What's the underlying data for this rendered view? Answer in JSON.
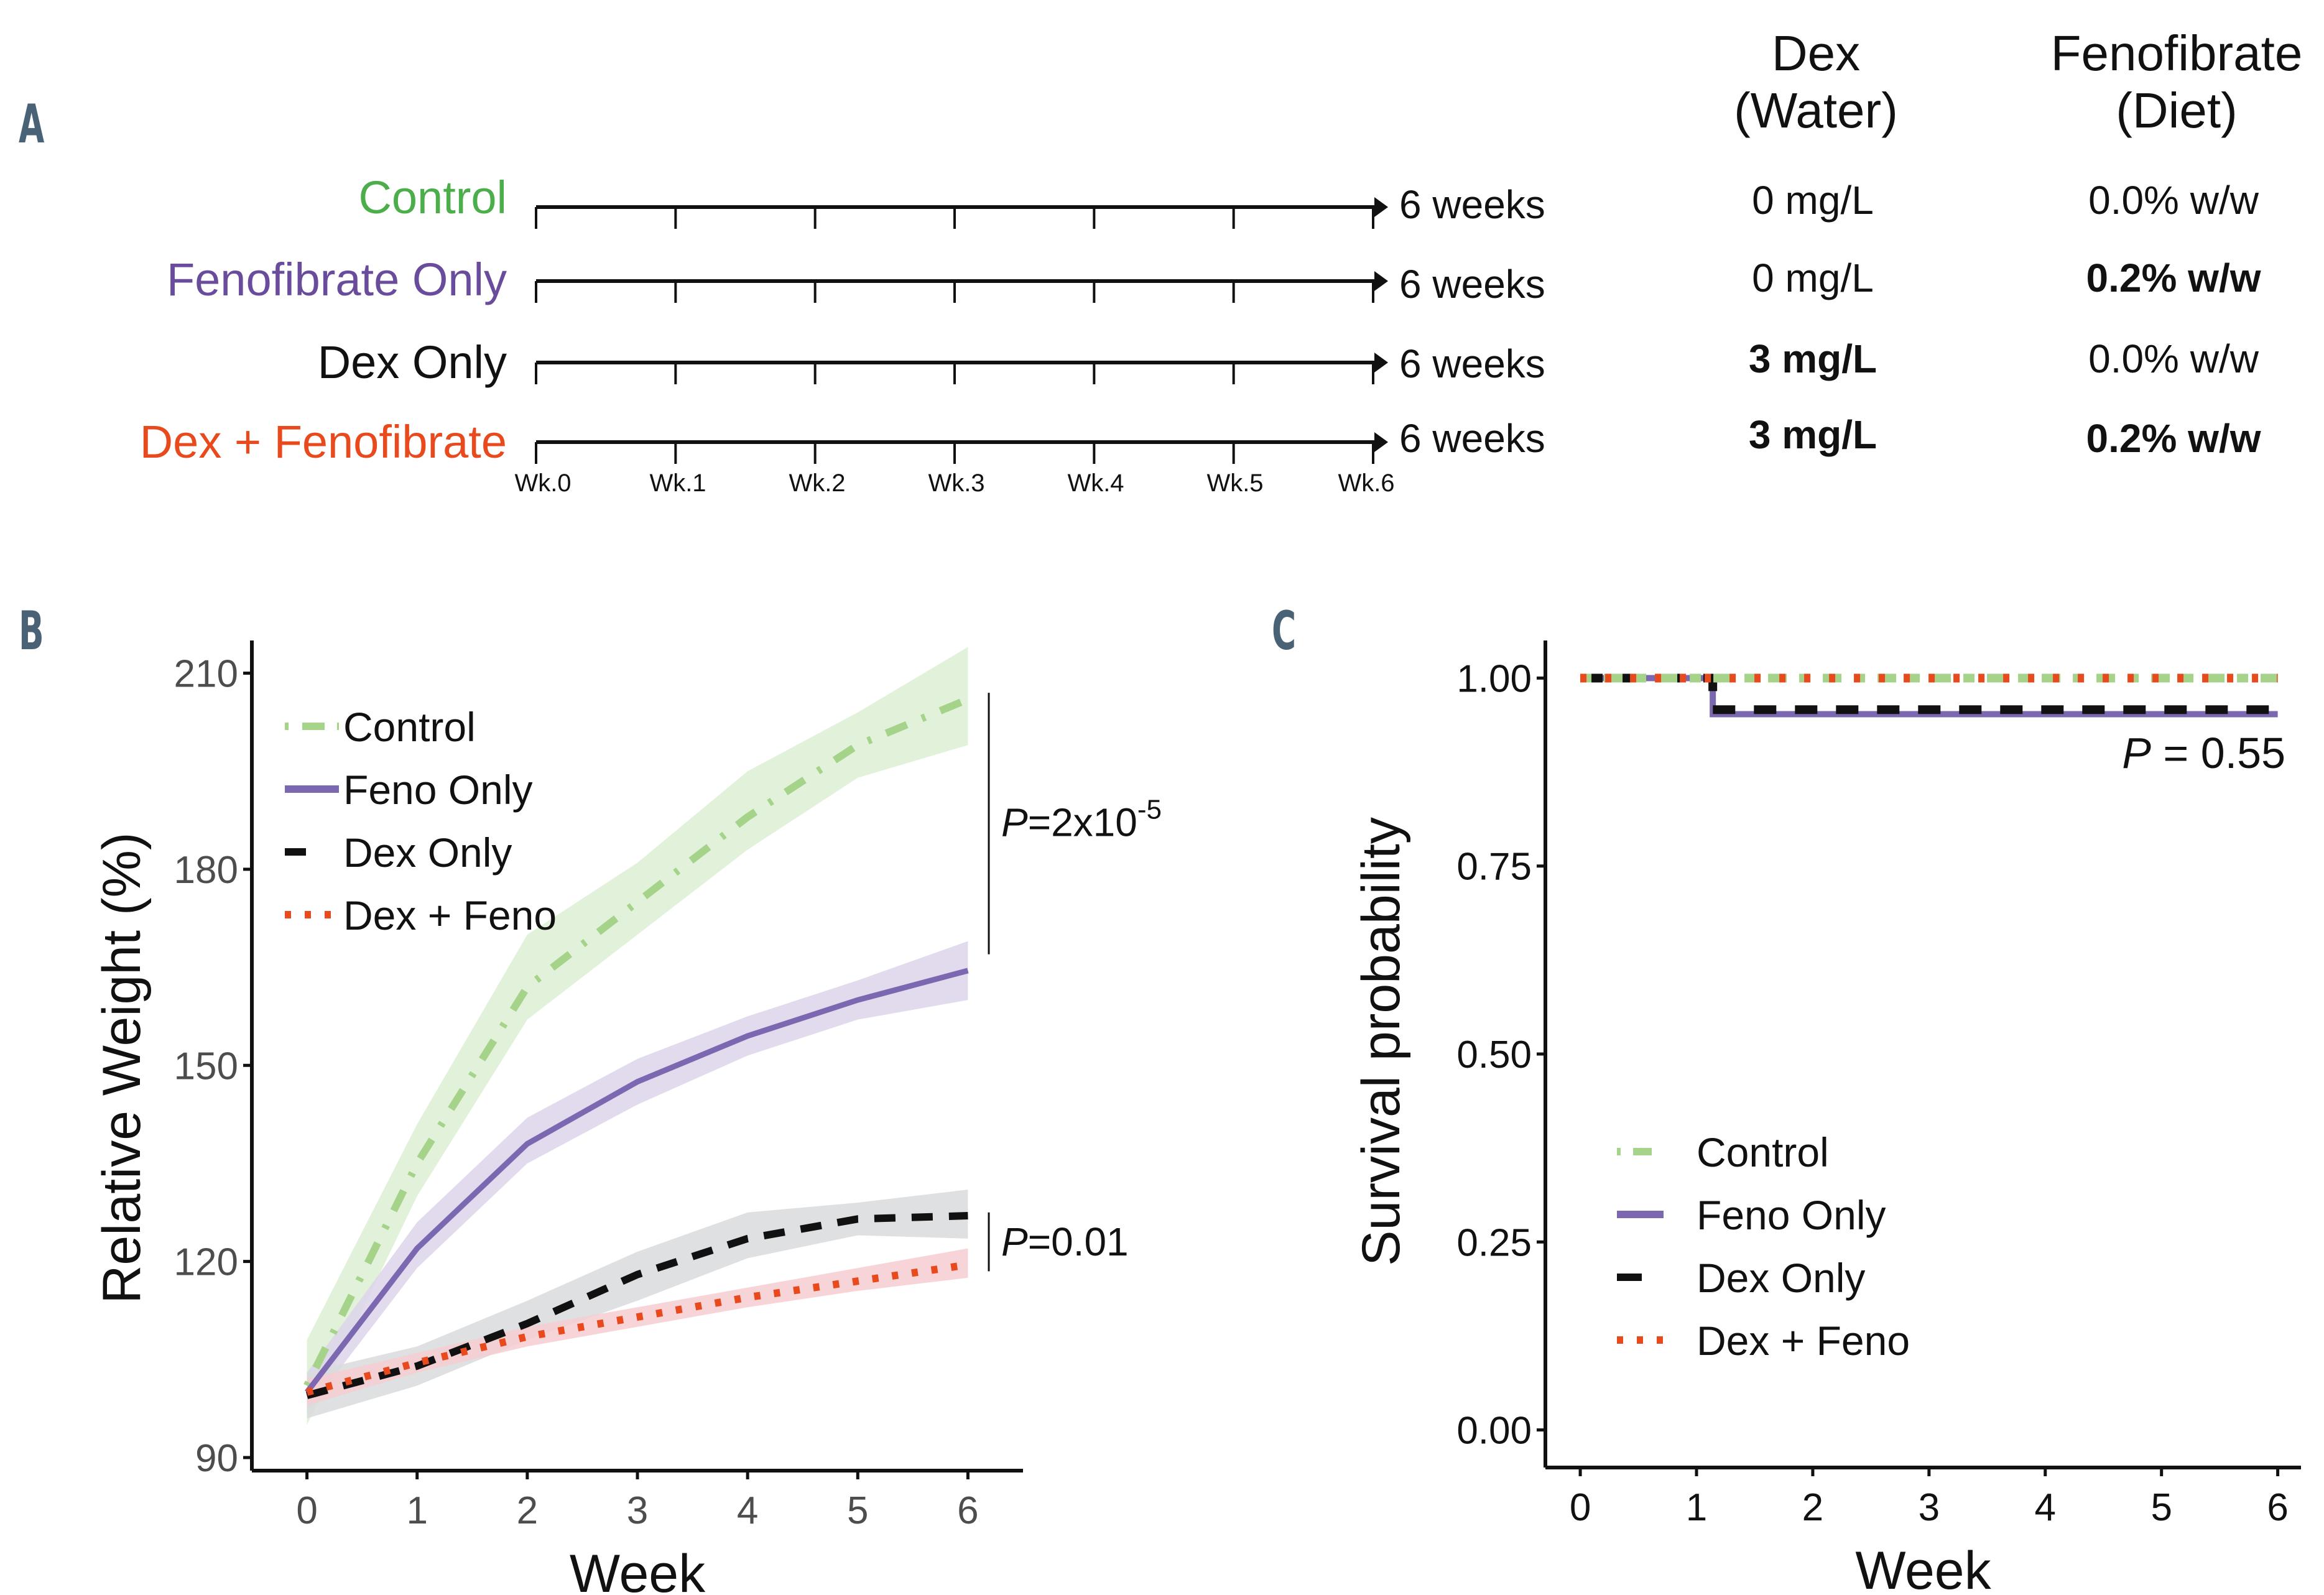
{
  "panels": {
    "A": {
      "letter": "A",
      "groups": [
        {
          "label": "Control",
          "color": "#4cae4a",
          "duration": "6 weeks",
          "dex": "0 mg/L",
          "dex_bold": false,
          "feno": "0.0% w/w",
          "feno_bold": false
        },
        {
          "label": "Fenofibrate Only",
          "color": "#6a4c9c",
          "duration": "6 weeks",
          "dex": "0 mg/L",
          "dex_bold": false,
          "feno": "0.2% w/w",
          "feno_bold": true
        },
        {
          "label": "Dex Only",
          "color": "#111111",
          "duration": "6 weeks",
          "dex": "3 mg/L",
          "dex_bold": true,
          "feno": "0.0% w/w",
          "feno_bold": false
        },
        {
          "label": "Dex + Fenofibrate",
          "color": "#e8491d",
          "duration": "6 weeks",
          "dex": "3 mg/L",
          "dex_bold": true,
          "feno": "0.2% w/w",
          "feno_bold": true
        }
      ],
      "timeline_ticks": [
        "Wk.0",
        "Wk.1",
        "Wk.2",
        "Wk.3",
        "Wk.4",
        "Wk.5",
        "Wk.6"
      ],
      "columns": {
        "dex": {
          "line1": "Dex",
          "line2": "(Water)"
        },
        "feno": {
          "line1": "Fenofibrate",
          "line2": "(Diet)"
        }
      }
    },
    "B": {
      "letter": "B"
    },
    "C": {
      "letter": "C"
    }
  },
  "chart_data": [
    {
      "id": "B",
      "type": "line",
      "title": "",
      "xlabel": "Week",
      "ylabel": "Relative Weight (%)",
      "x": [
        0,
        1,
        2,
        3,
        4,
        5,
        6
      ],
      "xlim": [
        -0.5,
        6.5
      ],
      "ylim": [
        88,
        215
      ],
      "xticks": [
        0,
        1,
        2,
        3,
        4,
        5,
        6
      ],
      "yticks": [
        90,
        120,
        150,
        180,
        210
      ],
      "grid": false,
      "legend_position": "top-left",
      "series": [
        {
          "name": "Control",
          "color": "#a6d38a",
          "band_color": "#dcefd4",
          "style": "dashdot",
          "values": [
            101,
            135,
            162,
            175,
            188,
            199,
            206
          ],
          "lower": [
            95,
            130,
            157,
            170,
            183,
            194,
            199
          ],
          "upper": [
            108,
            141,
            170,
            181,
            195,
            204,
            214
          ]
        },
        {
          "name": "Feno Only",
          "color": "#7b68b0",
          "band_color": "#dcd5ea",
          "style": "solid",
          "values": [
            100,
            122,
            138,
            147.5,
            154.5,
            160,
            164.5
          ],
          "lower": [
            97,
            119,
            135,
            144,
            151.5,
            157,
            160
          ],
          "upper": [
            103,
            126,
            142,
            151,
            157.5,
            163,
            169
          ]
        },
        {
          "name": "Dex Only",
          "color": "#111111",
          "band_color": "#d9dadc",
          "style": "dashed",
          "values": [
            99.5,
            104,
            110.5,
            118,
            123.5,
            126.5,
            127
          ],
          "lower": [
            96,
            101,
            108,
            114,
            120.5,
            124,
            123.5
          ],
          "upper": [
            103,
            107,
            114,
            121.5,
            127.5,
            129,
            131
          ]
        },
        {
          "name": "Dex + Feno",
          "color": "#e8491d",
          "band_color": "#f6ccd0",
          "style": "dotted",
          "values": [
            100,
            104.5,
            108.5,
            111.5,
            114.5,
            117,
            119.5
          ],
          "lower": [
            98,
            103,
            107,
            110,
            113,
            115.5,
            117.5
          ],
          "upper": [
            102,
            106,
            110,
            113,
            116,
            119,
            122
          ]
        }
      ],
      "annotations": [
        {
          "text": "P=2x10",
          "superscript": "-5",
          "from_y": 167,
          "to_y": 207
        },
        {
          "text": "P=0.01",
          "superscript": "",
          "from_y": 118.5,
          "to_y": 127.5
        }
      ]
    },
    {
      "id": "C",
      "type": "line",
      "subtype": "step",
      "title": "",
      "xlabel": "Week",
      "ylabel": "Survival probability",
      "xlim": [
        -0.3,
        6.2
      ],
      "ylim": [
        -0.05,
        1.05
      ],
      "xticks": [
        0,
        1,
        2,
        3,
        4,
        5,
        6
      ],
      "yticks": [
        0.0,
        0.25,
        0.5,
        0.75,
        1.0
      ],
      "ytick_labels": [
        "0.00",
        "0.25",
        "0.50",
        "0.75",
        "1.00"
      ],
      "grid": false,
      "legend_position": "bottom-left",
      "series": [
        {
          "name": "Control",
          "color": "#a6d38a",
          "style": "dashdot",
          "x": [
            0,
            6
          ],
          "values": [
            1.0,
            1.0
          ]
        },
        {
          "name": "Feno Only",
          "color": "#7b68b0",
          "style": "solid",
          "x": [
            0,
            1.14,
            1.14,
            6
          ],
          "values": [
            1.0,
            1.0,
            0.952,
            0.952
          ]
        },
        {
          "name": "Dex Only",
          "color": "#111111",
          "style": "dashed",
          "x": [
            0,
            1.14,
            1.14,
            6
          ],
          "values": [
            1.0,
            1.0,
            0.958,
            0.958
          ]
        },
        {
          "name": "Dex + Feno",
          "color": "#e8491d",
          "style": "dotted",
          "x": [
            0,
            6
          ],
          "values": [
            1.0,
            1.0
          ]
        }
      ],
      "annotations": [
        {
          "text": "P = 0.55"
        }
      ]
    }
  ]
}
